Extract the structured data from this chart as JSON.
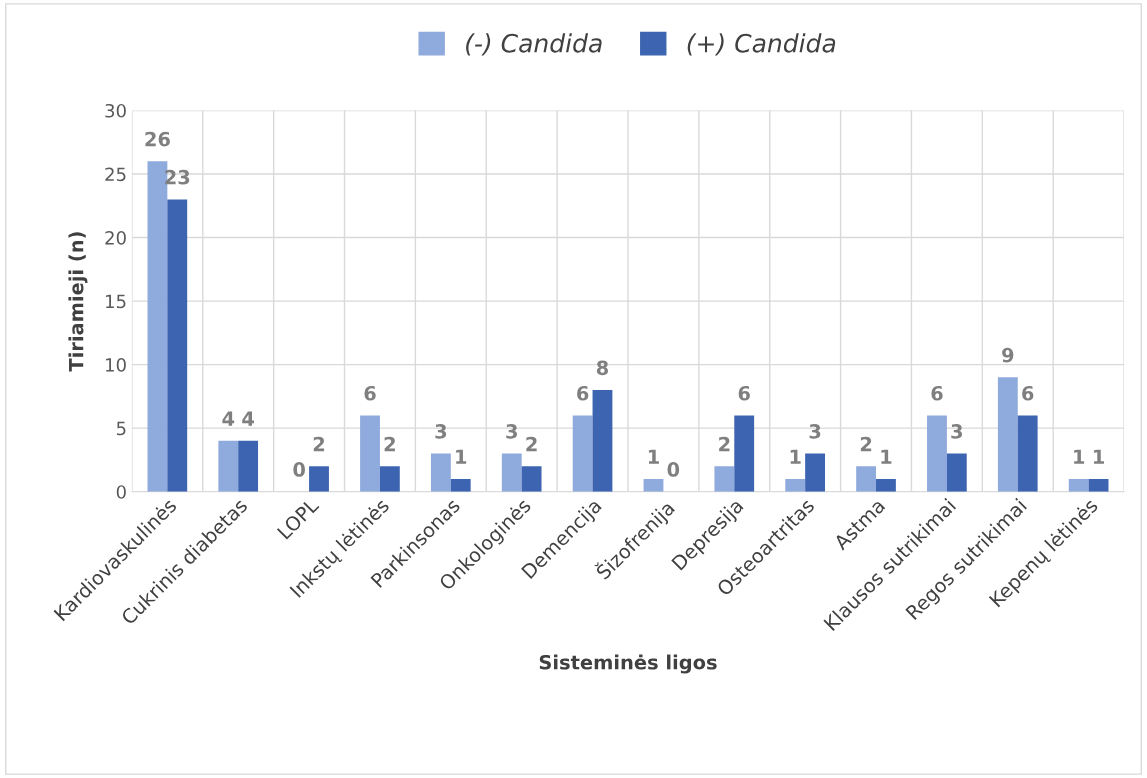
{
  "chart_data": {
    "type": "bar",
    "xlabel": "Sisteminės ligos",
    "ylabel": "Tiriamieji (n)",
    "categories": [
      "Kardiovaskulinės",
      "Cukrinis diabetas",
      "LOPL",
      "Inkstų lėtinės",
      "Parkinsonas",
      "Onkologinės",
      "Demencija",
      "Šizofrenija",
      "Depresija",
      "Osteoartritas",
      "Astma",
      "Klausos sutrikimai",
      "Regos sutrikimai",
      "Kepenų lėtinės"
    ],
    "series": [
      {
        "name": "(-) Candida",
        "color": "#8faadc",
        "values": [
          26,
          4,
          0,
          6,
          3,
          3,
          6,
          1,
          2,
          1,
          2,
          6,
          9,
          1
        ]
      },
      {
        "name": "(+) Candida",
        "color": "#3c64b0",
        "values": [
          23,
          4,
          2,
          2,
          1,
          2,
          8,
          0,
          6,
          3,
          1,
          3,
          6,
          1
        ]
      }
    ],
    "ylim": [
      0,
      30
    ],
    "yticks": [
      0,
      5,
      10,
      15,
      20,
      25,
      30
    ],
    "grid": true,
    "legend": "top",
    "data_labels": true
  }
}
